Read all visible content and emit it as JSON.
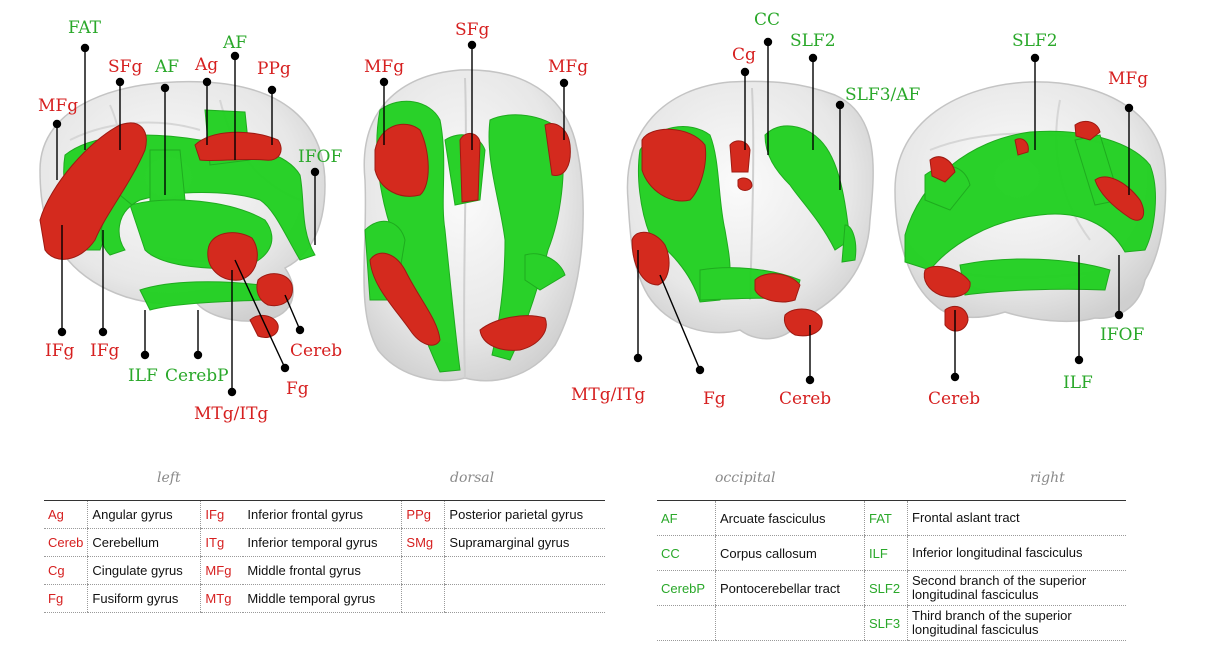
{
  "views": {
    "left": {
      "caption": "left",
      "labels": [
        {
          "id": "fat",
          "text": "FAT",
          "color": "green"
        },
        {
          "id": "sfg",
          "text": "SFg",
          "color": "red"
        },
        {
          "id": "af1",
          "text": "AF",
          "color": "green"
        },
        {
          "id": "ag",
          "text": "Ag",
          "color": "red"
        },
        {
          "id": "af2",
          "text": "AF",
          "color": "green"
        },
        {
          "id": "ppg",
          "text": "PPg",
          "color": "red"
        },
        {
          "id": "mfg",
          "text": "MFg",
          "color": "red"
        },
        {
          "id": "ifof",
          "text": "IFOF",
          "color": "green"
        },
        {
          "id": "ifg1",
          "text": "IFg",
          "color": "red"
        },
        {
          "id": "ifg2",
          "text": "IFg",
          "color": "red"
        },
        {
          "id": "ilf",
          "text": "ILF",
          "color": "green"
        },
        {
          "id": "cerebp",
          "text": "CerebP",
          "color": "green"
        },
        {
          "id": "cereb",
          "text": "Cereb",
          "color": "red"
        },
        {
          "id": "fg",
          "text": "Fg",
          "color": "red"
        },
        {
          "id": "mtg",
          "text": "MTg/ITg",
          "color": "red"
        }
      ]
    },
    "dorsal": {
      "caption": "dorsal",
      "labels": [
        {
          "id": "mfg1",
          "text": "MFg",
          "color": "red"
        },
        {
          "id": "sfg",
          "text": "SFg",
          "color": "red"
        },
        {
          "id": "mfg2",
          "text": "MFg",
          "color": "red"
        }
      ]
    },
    "occipital": {
      "caption": "occipital",
      "labels": [
        {
          "id": "cc",
          "text": "CC",
          "color": "green"
        },
        {
          "id": "cg",
          "text": "Cg",
          "color": "red"
        },
        {
          "id": "slf2",
          "text": "SLF2",
          "color": "green"
        },
        {
          "id": "slf3",
          "text": "SLF3/AF",
          "color": "green"
        },
        {
          "id": "mtg",
          "text": "MTg/ITg",
          "color": "red"
        },
        {
          "id": "fg",
          "text": "Fg",
          "color": "red"
        },
        {
          "id": "cereb",
          "text": "Cereb",
          "color": "red"
        }
      ]
    },
    "right": {
      "caption": "right",
      "labels": [
        {
          "id": "slf2",
          "text": "SLF2",
          "color": "green"
        },
        {
          "id": "mfg",
          "text": "MFg",
          "color": "red"
        },
        {
          "id": "ifof",
          "text": "IFOF",
          "color": "green"
        },
        {
          "id": "ilf",
          "text": "ILF",
          "color": "green"
        },
        {
          "id": "cereb",
          "text": "Cereb",
          "color": "red"
        }
      ]
    }
  },
  "colors": {
    "red_label": "#d62020",
    "green_label": "#2aa82a",
    "red_region": "#d42a1e",
    "green_tract": "#1fd01f",
    "brain": "#e9e9e9",
    "brain_edge": "#c4c4c4"
  },
  "legend_regions": [
    [
      {
        "abbr": "Ag",
        "name": "Angular gyrus"
      },
      {
        "abbr": "IFg",
        "name": "Inferior frontal gyrus"
      },
      {
        "abbr": "PPg",
        "name": "Posterior parietal gyrus"
      }
    ],
    [
      {
        "abbr": "Cereb",
        "name": "Cerebellum"
      },
      {
        "abbr": "ITg",
        "name": "Inferior temporal gyrus"
      },
      {
        "abbr": "SMg",
        "name": "Supramarginal gyrus"
      }
    ],
    [
      {
        "abbr": "Cg",
        "name": "Cingulate gyrus"
      },
      {
        "abbr": "MFg",
        "name": "Middle frontal gyrus"
      },
      {
        "abbr": "",
        "name": ""
      }
    ],
    [
      {
        "abbr": "Fg",
        "name": "Fusiform gyrus"
      },
      {
        "abbr": "MTg",
        "name": "Middle temporal gyrus"
      },
      {
        "abbr": "",
        "name": ""
      }
    ]
  ],
  "legend_tracts": [
    [
      {
        "abbr": "AF",
        "name": "Arcuate fasciculus"
      },
      {
        "abbr": "FAT",
        "name": "Frontal aslant tract"
      }
    ],
    [
      {
        "abbr": "CC",
        "name": "Corpus callosum"
      },
      {
        "abbr": "ILF",
        "name": "Inferior longitudinal fasciculus"
      }
    ],
    [
      {
        "abbr": "CerebP",
        "name": "Pontocerebellar tract"
      },
      {
        "abbr": "SLF2",
        "name": "Second branch of the superior longitudinal fasciculus"
      }
    ],
    [
      {
        "abbr": "",
        "name": ""
      },
      {
        "abbr": "SLF3",
        "name": "Third branch of the superior longitudinal fasciculus"
      }
    ]
  ]
}
